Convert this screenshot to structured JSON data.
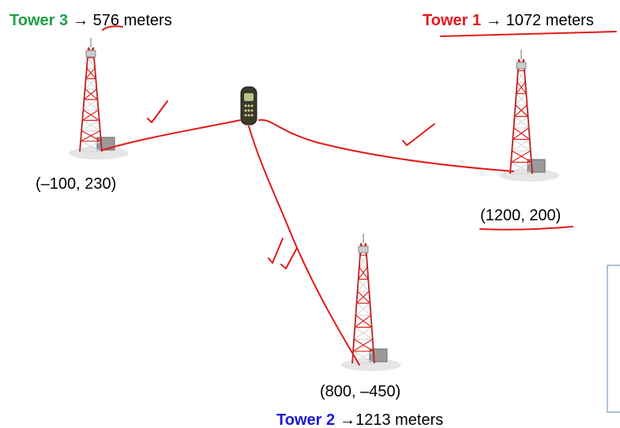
{
  "towers": [
    {
      "name": "Tower 1",
      "distance": "→ 1072 meters",
      "coords": "(1200, 200)"
    },
    {
      "name": "Tower 2",
      "distance": "→1213 meters",
      "coords": "(800, –450)"
    },
    {
      "name": "Tower 3",
      "distance": "→ 576 meters",
      "coords": "(–100, 230)"
    }
  ]
}
